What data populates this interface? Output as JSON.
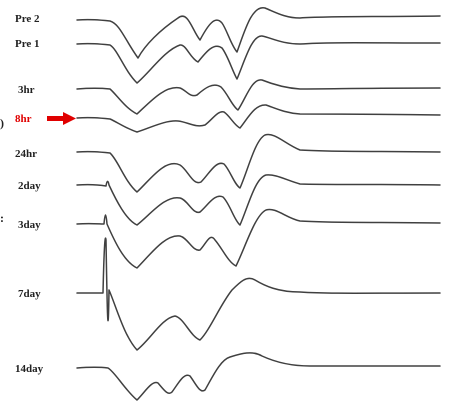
{
  "chart_data": {
    "type": "line",
    "title": "",
    "xlabel": "",
    "ylabel": "",
    "grid": false,
    "legend": "none",
    "trace_color": "#404040",
    "highlight_color": "#e00000",
    "series": [
      {
        "name": "Pre 2",
        "key": "pre2"
      },
      {
        "name": "Pre 1",
        "key": "pre1"
      },
      {
        "name": "3hr",
        "key": "h3"
      },
      {
        "name": "8hr",
        "key": "h8",
        "highlight": true
      },
      {
        "name": "24hr",
        "key": "h24"
      },
      {
        "name": "2day",
        "key": "d2"
      },
      {
        "name": "3day",
        "key": "d3"
      },
      {
        "name": "7day",
        "key": "d7"
      },
      {
        "name": "14day",
        "key": "d14"
      }
    ],
    "annotations": [
      {
        "type": "arrow",
        "points_to": "8hr",
        "color": "#e00000"
      }
    ],
    "edge_glyphs": [
      ")",
      ":"
    ]
  }
}
